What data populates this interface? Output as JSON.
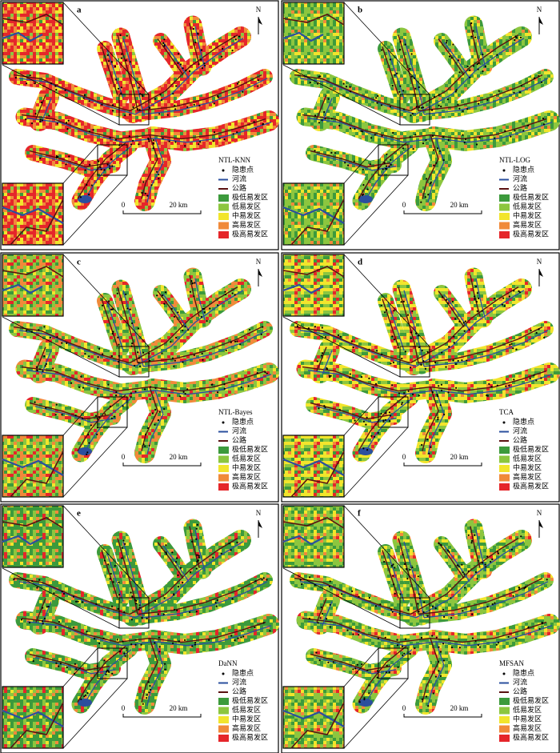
{
  "panels": [
    {
      "letter": "a",
      "method": "NTL-KNN"
    },
    {
      "letter": "b",
      "method": "NTL-LOG"
    },
    {
      "letter": "c",
      "method": "NTL-Bayes"
    },
    {
      "letter": "d",
      "method": "TCA"
    },
    {
      "letter": "e",
      "method": "DaNN"
    },
    {
      "letter": "f",
      "method": "MFSAN"
    }
  ],
  "legend": {
    "items": [
      {
        "label": "隐患点",
        "color": "#000000"
      },
      {
        "label": "河流",
        "color": "#2b4f9e"
      },
      {
        "label": "公路",
        "color": "#5a1010"
      },
      {
        "label": "极低易发区",
        "color": "#3c9a3c"
      },
      {
        "label": "低易发区",
        "color": "#8cc63f"
      },
      {
        "label": "中易发区",
        "color": "#f2e52c"
      },
      {
        "label": "高易发区",
        "color": "#f08a3a"
      },
      {
        "label": "极高易发区",
        "color": "#e5262a"
      }
    ]
  },
  "north": "N",
  "scale_bar": {
    "start": "0",
    "end": "20 km"
  }
}
